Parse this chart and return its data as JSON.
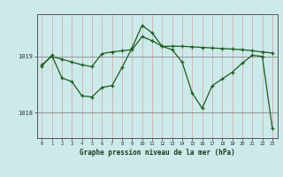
{
  "title": "Graphe pression niveau de la mer (hPa)",
  "bg_color": "#cceaea",
  "line_color": "#1a5c1a",
  "x_min": 0,
  "x_max": 23,
  "y_min": 1017.55,
  "y_max": 1019.75,
  "y_ticks": [
    1018,
    1019
  ],
  "x_ticks": [
    0,
    1,
    2,
    3,
    4,
    5,
    6,
    7,
    8,
    9,
    10,
    11,
    12,
    13,
    14,
    15,
    16,
    17,
    18,
    19,
    20,
    21,
    22,
    23
  ],
  "line1_x": [
    0,
    1,
    2,
    3,
    4,
    5,
    6,
    7,
    8,
    9,
    10,
    11,
    12,
    13,
    14,
    15,
    16,
    17,
    18,
    19,
    20,
    21,
    22,
    23
  ],
  "line1_y": [
    1018.85,
    1019.0,
    1018.95,
    1018.9,
    1018.85,
    1018.82,
    1019.05,
    1019.08,
    1019.1,
    1019.12,
    1019.35,
    1019.28,
    1019.18,
    1019.18,
    1019.18,
    1019.17,
    1019.16,
    1019.15,
    1019.14,
    1019.13,
    1019.12,
    1019.1,
    1019.08,
    1019.06
  ],
  "line2_x": [
    0,
    1,
    2,
    3,
    4,
    5,
    6,
    7,
    8,
    9,
    10,
    11,
    12,
    13,
    14,
    15,
    16,
    17,
    18,
    19,
    20,
    21,
    22,
    23
  ],
  "line2_y": [
    1018.83,
    1019.02,
    1018.62,
    1018.55,
    1018.3,
    1018.28,
    1018.45,
    1018.48,
    1018.8,
    1019.15,
    1019.55,
    1019.42,
    1019.18,
    1019.12,
    1018.9,
    1018.35,
    1018.08,
    1018.48,
    1018.6,
    1018.72,
    1018.88,
    1019.02,
    1019.0,
    1017.72
  ]
}
